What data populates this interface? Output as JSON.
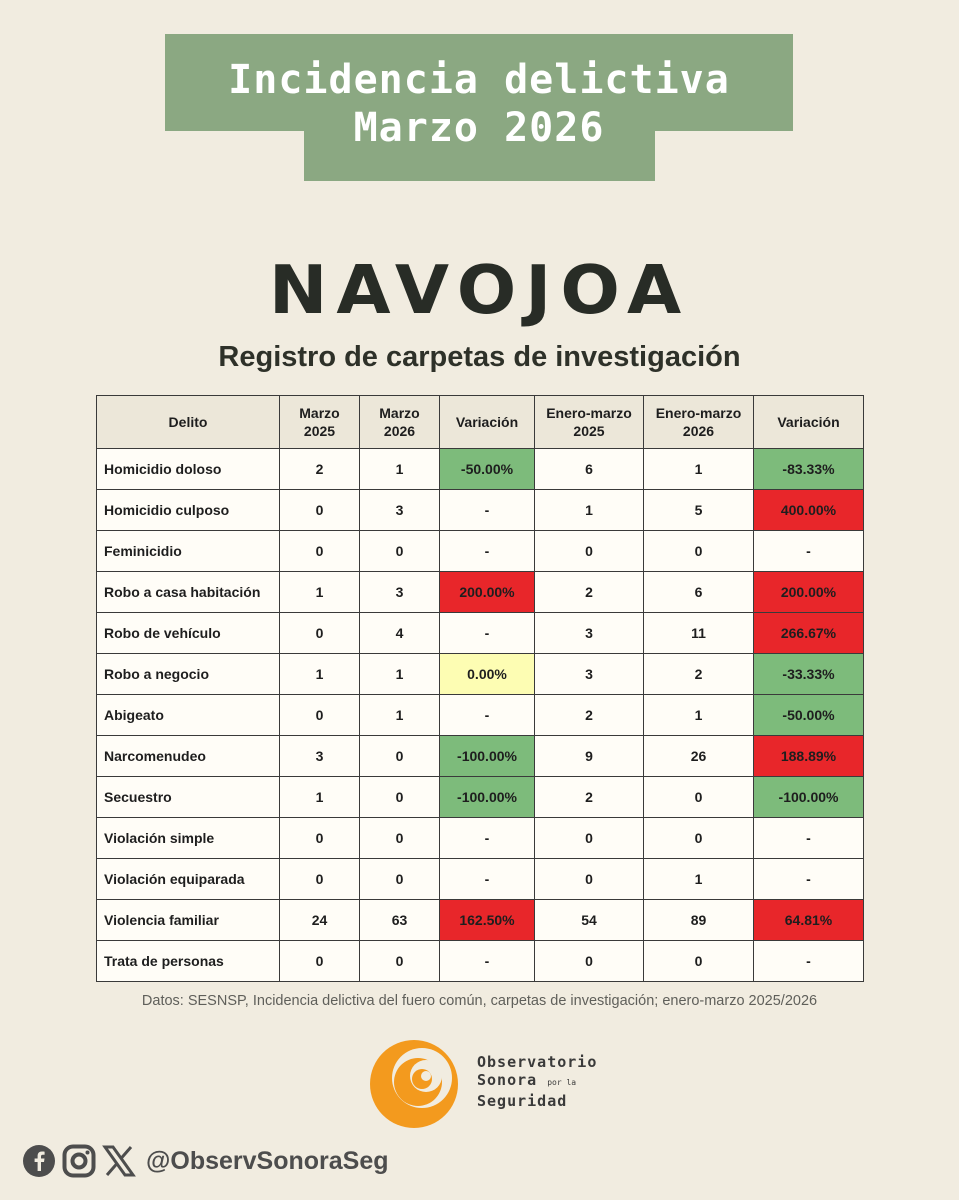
{
  "header": {
    "title_line1": "Incidencia delictiva",
    "title_line2": "Marzo 2026",
    "city": "NAVOJOA",
    "subtitle": "Registro de carpetas de investigación"
  },
  "table": {
    "headers": {
      "delito": "Delito",
      "marzo2025_l1": "Marzo",
      "marzo2025_l2": "2025",
      "marzo2026_l1": "Marzo",
      "marzo2026_l2": "2026",
      "variacion1": "Variación",
      "em2025_l1": "Enero-marzo",
      "em2025_l2": "2025",
      "em2026_l1": "Enero-marzo",
      "em2026_l2": "2026",
      "variacion2": "Variación"
    },
    "rows": [
      {
        "delito": "Homicidio doloso",
        "m25": "2",
        "m26": "1",
        "var1": "-50.00%",
        "var1_status": "green",
        "em25": "6",
        "em26": "1",
        "var2": "-83.33%",
        "var2_status": "green"
      },
      {
        "delito": "Homicidio culposo",
        "m25": "0",
        "m26": "3",
        "var1": "-",
        "var1_status": "none",
        "em25": "1",
        "em26": "5",
        "var2": "400.00%",
        "var2_status": "red"
      },
      {
        "delito": "Feminicidio",
        "m25": "0",
        "m26": "0",
        "var1": "-",
        "var1_status": "none",
        "em25": "0",
        "em26": "0",
        "var2": "-",
        "var2_status": "none"
      },
      {
        "delito": "Robo a casa habitación",
        "m25": "1",
        "m26": "3",
        "var1": "200.00%",
        "var1_status": "red",
        "em25": "2",
        "em26": "6",
        "var2": "200.00%",
        "var2_status": "red"
      },
      {
        "delito": "Robo de vehículo",
        "m25": "0",
        "m26": "4",
        "var1": "-",
        "var1_status": "none",
        "em25": "3",
        "em26": "11",
        "var2": "266.67%",
        "var2_status": "red"
      },
      {
        "delito": "Robo a negocio",
        "m25": "1",
        "m26": "1",
        "var1": "0.00%",
        "var1_status": "yellow",
        "em25": "3",
        "em26": "2",
        "var2": "-33.33%",
        "var2_status": "green"
      },
      {
        "delito": "Abigeato",
        "m25": "0",
        "m26": "1",
        "var1": "-",
        "var1_status": "none",
        "em25": "2",
        "em26": "1",
        "var2": "-50.00%",
        "var2_status": "green"
      },
      {
        "delito": "Narcomenudeo",
        "m25": "3",
        "m26": "0",
        "var1": "-100.00%",
        "var1_status": "green",
        "em25": "9",
        "em26": "26",
        "var2": "188.89%",
        "var2_status": "red"
      },
      {
        "delito": "Secuestro",
        "m25": "1",
        "m26": "0",
        "var1": "-100.00%",
        "var1_status": "green",
        "em25": "2",
        "em26": "0",
        "var2": "-100.00%",
        "var2_status": "green"
      },
      {
        "delito": "Violación simple",
        "m25": "0",
        "m26": "0",
        "var1": "-",
        "var1_status": "none",
        "em25": "0",
        "em26": "0",
        "var2": "-",
        "var2_status": "none"
      },
      {
        "delito": "Violación equiparada",
        "m25": "0",
        "m26": "0",
        "var1": "-",
        "var1_status": "none",
        "em25": "0",
        "em26": "1",
        "var2": "-",
        "var2_status": "none"
      },
      {
        "delito": "Violencia familiar",
        "m25": "24",
        "m26": "63",
        "var1": "162.50%",
        "var1_status": "red",
        "em25": "54",
        "em26": "89",
        "var2": "64.81%",
        "var2_status": "red"
      },
      {
        "delito": "Trata de personas",
        "m25": "0",
        "m26": "0",
        "var1": "-",
        "var1_status": "none",
        "em25": "0",
        "em26": "0",
        "var2": "-",
        "var2_status": "none"
      }
    ]
  },
  "source": "Datos: SESNSP, Incidencia delictiva del fuero común, carpetas de investigación; enero-marzo 2025/2026",
  "logo": {
    "line1": "Observatorio",
    "line2": "Sonora",
    "line2_small": "por la",
    "line3": "Seguridad"
  },
  "social": {
    "icons": [
      "facebook-icon",
      "instagram-icon",
      "x-icon"
    ],
    "handle": "@ObservSonoraSeg"
  },
  "colors": {
    "background": "#f1ece0",
    "title_box": "#8ba882",
    "green": "#7dbb7b",
    "red": "#e8262a",
    "yellow": "#fdfdb3",
    "logo_orange": "#f39a1e"
  }
}
